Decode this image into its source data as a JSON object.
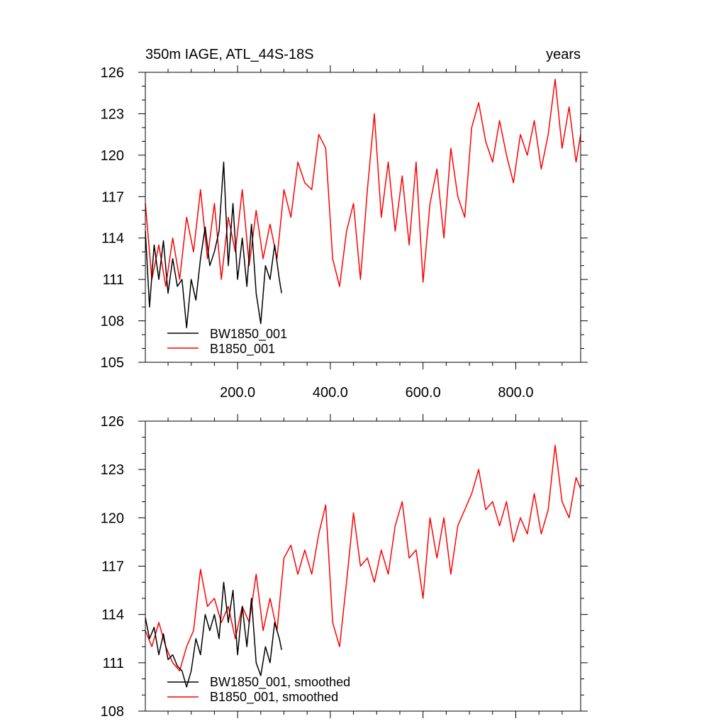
{
  "chart_data": [
    {
      "type": "line",
      "title": "350m IAGE, ATL_44S-18S",
      "units": "years",
      "xlim": [
        1,
        940
      ],
      "ylim": [
        105,
        126
      ],
      "xticks": [
        200,
        400,
        600,
        800
      ],
      "xtick_labels": [
        "200.0",
        "400.0",
        "600.0",
        "800.0"
      ],
      "yticks": [
        105,
        108,
        111,
        114,
        117,
        120,
        123,
        126
      ],
      "ytick_labels": [
        "105",
        "108",
        "111",
        "114",
        "117",
        "120",
        "123",
        "126"
      ],
      "legend": [
        "BW1850_001",
        "B1850_001"
      ],
      "series": [
        {
          "name": "BW1850_001",
          "color": "#000000",
          "x": [
            1,
            10,
            20,
            30,
            40,
            50,
            60,
            70,
            80,
            90,
            100,
            110,
            120,
            130,
            140,
            150,
            160,
            170,
            180,
            190,
            200,
            210,
            220,
            230,
            240,
            250,
            260,
            270,
            280,
            290,
            295
          ],
          "values": [
            114.5,
            109,
            113.5,
            111,
            113.8,
            110,
            112.5,
            110.5,
            111,
            107.5,
            111,
            109.5,
            112.5,
            114.8,
            112,
            113,
            114.5,
            119.5,
            112,
            116.5,
            111,
            114,
            110.5,
            115,
            110,
            107.8,
            112,
            111,
            113.5,
            111,
            110
          ]
        },
        {
          "name": "B1850_001",
          "color": "#ff0000",
          "x": [
            1,
            15,
            30,
            45,
            60,
            75,
            90,
            105,
            120,
            135,
            150,
            165,
            180,
            195,
            210,
            225,
            240,
            255,
            270,
            285,
            300,
            315,
            330,
            345,
            360,
            375,
            390,
            405,
            420,
            435,
            450,
            465,
            480,
            495,
            510,
            525,
            540,
            555,
            570,
            585,
            600,
            615,
            630,
            645,
            660,
            675,
            690,
            705,
            720,
            735,
            750,
            765,
            780,
            795,
            810,
            825,
            840,
            855,
            870,
            885,
            900,
            915,
            930,
            940
          ],
          "values": [
            116.5,
            111,
            113.5,
            110.5,
            114,
            111,
            115.5,
            113,
            117.5,
            112.5,
            116.5,
            111,
            115.5,
            113,
            117.5,
            112,
            116,
            112.5,
            115,
            112.5,
            117.5,
            115.5,
            119.5,
            118,
            117.5,
            121.5,
            120.5,
            112.5,
            110.5,
            114.5,
            116.5,
            111,
            117.5,
            123,
            115.5,
            119.5,
            114.5,
            118.5,
            113.5,
            119.5,
            110.8,
            116.5,
            119,
            114,
            120.5,
            117,
            115.5,
            122,
            123.8,
            121,
            119.5,
            122.5,
            120,
            118,
            121.5,
            120,
            122.5,
            119,
            121.5,
            125.5,
            120.5,
            123.5,
            119.5,
            121.5
          ]
        }
      ]
    },
    {
      "type": "line",
      "title": "",
      "units": "",
      "xlim": [
        1,
        940
      ],
      "ylim": [
        108,
        126
      ],
      "xticks": [
        200,
        400,
        600,
        800
      ],
      "xtick_labels": [],
      "yticks": [
        108,
        111,
        114,
        117,
        120,
        123,
        126
      ],
      "ytick_labels": [
        "108",
        "111",
        "114",
        "117",
        "120",
        "123",
        "126"
      ],
      "legend": [
        "BW1850_001, smoothed",
        "B1850_001, smoothed"
      ],
      "series": [
        {
          "name": "BW1850_001, smoothed",
          "color": "#000000",
          "x": [
            1,
            10,
            20,
            30,
            40,
            50,
            60,
            70,
            80,
            90,
            100,
            110,
            120,
            130,
            140,
            150,
            160,
            170,
            180,
            190,
            200,
            210,
            220,
            230,
            240,
            250,
            260,
            270,
            280,
            290,
            295
          ],
          "values": [
            113.8,
            112.5,
            113.2,
            111.5,
            112.8,
            111.2,
            111.5,
            110.8,
            110.5,
            109.5,
            110.5,
            112.5,
            111.5,
            114,
            113,
            114,
            112.5,
            116,
            113.5,
            115.5,
            111.5,
            114.5,
            112,
            115,
            111,
            110.2,
            112,
            111,
            113.5,
            112.5,
            111.8
          ]
        },
        {
          "name": "B1850_001, smoothed",
          "color": "#ff0000",
          "x": [
            1,
            15,
            30,
            45,
            60,
            75,
            90,
            105,
            120,
            135,
            150,
            165,
            180,
            195,
            210,
            225,
            240,
            255,
            270,
            285,
            300,
            315,
            330,
            345,
            360,
            375,
            390,
            405,
            420,
            435,
            450,
            465,
            480,
            495,
            510,
            525,
            540,
            555,
            570,
            585,
            600,
            615,
            630,
            645,
            660,
            675,
            690,
            705,
            720,
            735,
            750,
            765,
            780,
            795,
            810,
            825,
            840,
            855,
            870,
            885,
            900,
            915,
            930,
            940
          ],
          "values": [
            113,
            112,
            113.5,
            112,
            111,
            110.5,
            112,
            113,
            116.8,
            114.5,
            115,
            113.5,
            114.5,
            112.5,
            114.5,
            113.5,
            116.5,
            113,
            115,
            113,
            117.5,
            118.3,
            116.5,
            118,
            116.5,
            119,
            120.8,
            113.5,
            112,
            116,
            120.3,
            117,
            117.5,
            116,
            118,
            116.5,
            119.5,
            121,
            117.5,
            118,
            115,
            120,
            117.5,
            120,
            116.5,
            119.5,
            120.5,
            121.5,
            123,
            120.5,
            121,
            119.5,
            121,
            118.5,
            120,
            119,
            121.5,
            119,
            120.5,
            124.5,
            121,
            120,
            122.5,
            121.8
          ]
        }
      ]
    }
  ]
}
